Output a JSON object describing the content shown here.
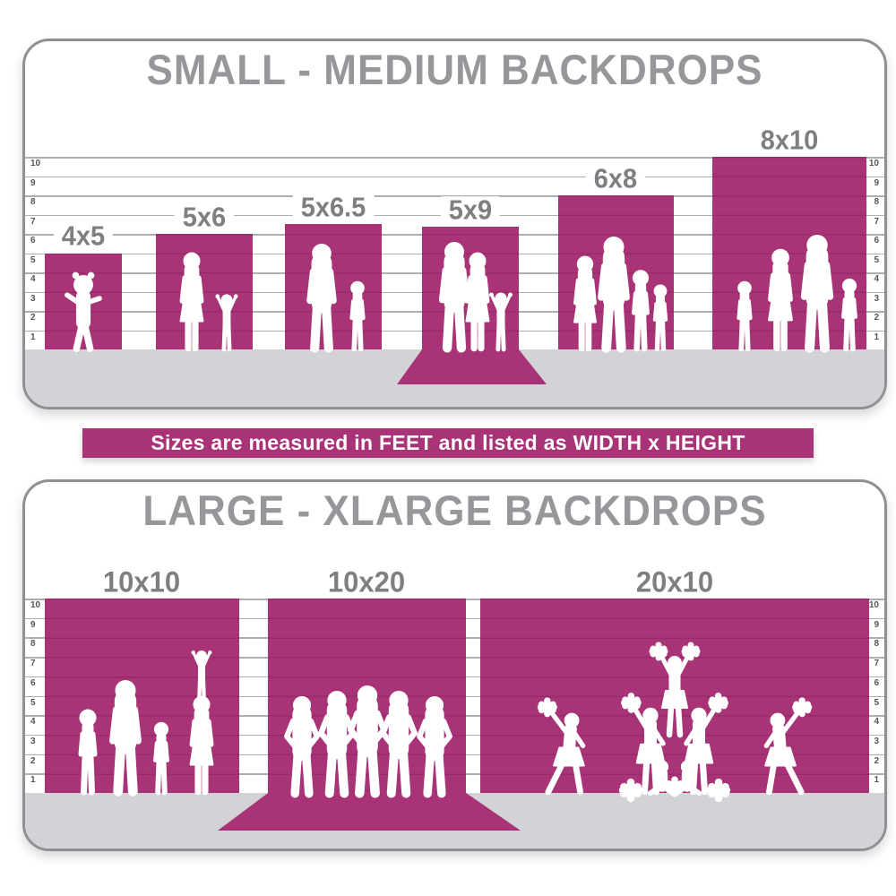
{
  "colors": {
    "magenta": "#A93377",
    "title_gray": "#97979B",
    "label_gray": "#7E7F83",
    "floor_gray": "#D3D3D7",
    "gridline_gray": "#AEAEB2",
    "panel_border": "#8F9094",
    "banner_bg": "#A93377",
    "banner_text": "#FFFFFF",
    "silhouette": "#FFFFFF"
  },
  "rulers": {
    "unit": "feet",
    "values": [
      "10",
      "9",
      "8",
      "7",
      "6",
      "5",
      "4",
      "3",
      "2",
      "1"
    ]
  },
  "top_panel": {
    "title": "SMALL - MEDIUM BACKDROPS",
    "backdrops": [
      {
        "label": "4x5",
        "width_ft": 4,
        "height_ft": 5,
        "floor_sweep": false,
        "figures": "toddler"
      },
      {
        "label": "5x6",
        "width_ft": 5,
        "height_ft": 6,
        "floor_sweep": false,
        "figures": "mother and child"
      },
      {
        "label": "5x6.5",
        "width_ft": 5,
        "height_ft": 6.5,
        "floor_sweep": false,
        "figures": "father and child"
      },
      {
        "label": "5x9",
        "width_ft": 5,
        "height_ft": 9,
        "floor_sweep": true,
        "figures": "couple with child"
      },
      {
        "label": "6x8",
        "width_ft": 6,
        "height_ft": 8,
        "floor_sweep": false,
        "figures": "family of four"
      },
      {
        "label": "8x10",
        "width_ft": 8,
        "height_ft": 10,
        "floor_sweep": false,
        "figures": "family of four"
      }
    ]
  },
  "banner": {
    "text": "Sizes are measured in FEET and listed as WIDTH x HEIGHT"
  },
  "bottom_panel": {
    "title": "LARGE - XLARGE BACKDROPS",
    "backdrops": [
      {
        "label": "10x10",
        "width_ft": 10,
        "height_ft": 10,
        "floor_sweep": false,
        "figures": "family of five"
      },
      {
        "label": "10x20",
        "width_ft": 10,
        "height_ft": 20,
        "floor_sweep": true,
        "figures": "group of five men"
      },
      {
        "label": "20x10",
        "width_ft": 20,
        "height_ft": 10,
        "floor_sweep": false,
        "figures": "cheerleading squad"
      }
    ]
  }
}
